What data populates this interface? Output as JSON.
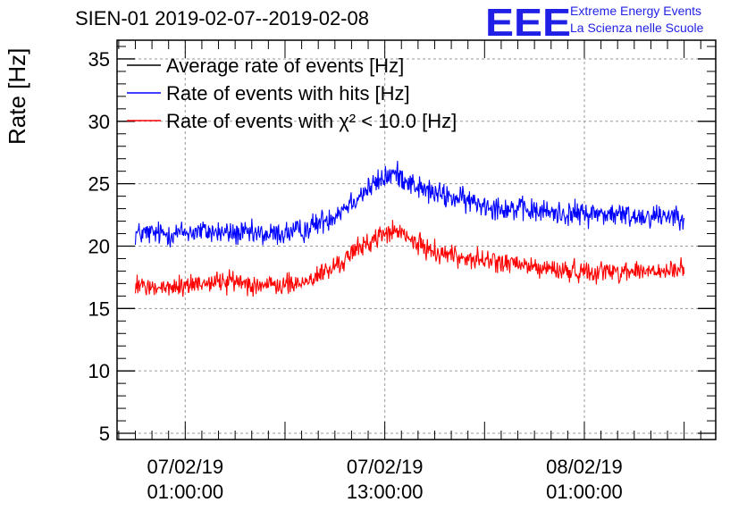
{
  "header": {
    "title": "SIEN-01 2019-02-07--2019-02-08",
    "logo_letters": "EEE",
    "logo_line1": "Extreme Energy Events",
    "logo_line2": "La Scienza nelle Scuole"
  },
  "colors": {
    "average": "#000000",
    "hits": "#0000ff",
    "chi2": "#ff0000",
    "logo": "#1f1fe6",
    "grid": "#9a9a9a"
  },
  "chart_data": {
    "type": "line",
    "title": "SIEN-01 2019-02-07--2019-02-08",
    "xlabel": "",
    "ylabel": "Rate [Hz]",
    "x_unit": "hours since 07/02/19 00:00:00",
    "xlim": [
      -3.1,
      32.9
    ],
    "ylim": [
      4.5,
      36.5
    ],
    "yticks": [
      5,
      10,
      15,
      20,
      25,
      30,
      35
    ],
    "xticks": [
      {
        "x": 1,
        "line1": "07/02/19",
        "line2": "01:00:00"
      },
      {
        "x": 13,
        "line1": "07/02/19",
        "line2": "13:00:00"
      },
      {
        "x": 25,
        "line1": "08/02/19",
        "line2": "01:00:00"
      }
    ],
    "grid": true,
    "legend_position": "top-left",
    "x": [
      -2.0,
      0,
      2,
      4,
      6,
      8,
      10,
      11,
      12,
      13,
      13.5,
      14,
      15,
      16,
      18,
      20,
      22,
      24,
      26,
      28,
      30,
      31
    ],
    "series": [
      {
        "name": "Average rate of events [Hz]",
        "color": "#000000",
        "values": null
      },
      {
        "name": "Rate of events with hits [Hz]",
        "color": "#0000ff",
        "noise": 0.75,
        "values": [
          21.0,
          21.0,
          21.2,
          21.0,
          20.9,
          21.2,
          22.5,
          23.6,
          24.6,
          25.5,
          25.8,
          25.6,
          24.7,
          24.2,
          23.6,
          23.1,
          22.8,
          22.6,
          22.6,
          22.4,
          22.5,
          22.5
        ]
      },
      {
        "name": "Rate of events with χ² < 10.0 [Hz]",
        "color": "#ff0000",
        "noise": 0.65,
        "values": [
          16.8,
          16.6,
          17.1,
          17.2,
          16.8,
          17.0,
          18.3,
          19.4,
          20.3,
          21.0,
          21.2,
          21.0,
          20.1,
          19.6,
          19.0,
          18.7,
          18.3,
          18.0,
          18.0,
          18.0,
          17.9,
          18.2
        ]
      }
    ]
  }
}
